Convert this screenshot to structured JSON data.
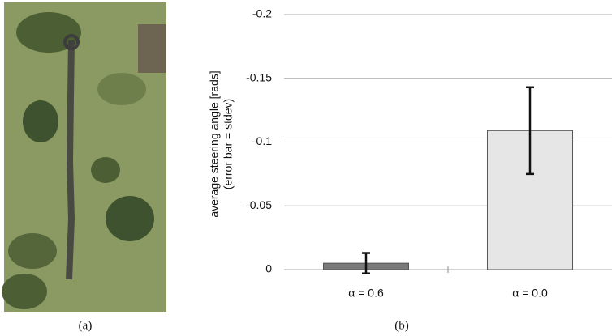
{
  "figure": {
    "panel_labels": [
      "(a)",
      "(b)"
    ]
  },
  "chart_data": {
    "type": "bar",
    "ylabel_lines": [
      "average steering angle [rads]",
      "(error bar = stdev)"
    ],
    "categories": [
      "α = 0.6",
      "α = 0.0"
    ],
    "values": [
      -0.005,
      -0.109
    ],
    "errors": [
      0.008,
      0.034
    ],
    "colors": [
      "#7a7a7a",
      "#e6e6e6"
    ],
    "ylim": [
      0,
      -0.2
    ],
    "yticks": [
      0,
      -0.05,
      -0.1,
      -0.15,
      -0.2
    ],
    "grid": true
  }
}
